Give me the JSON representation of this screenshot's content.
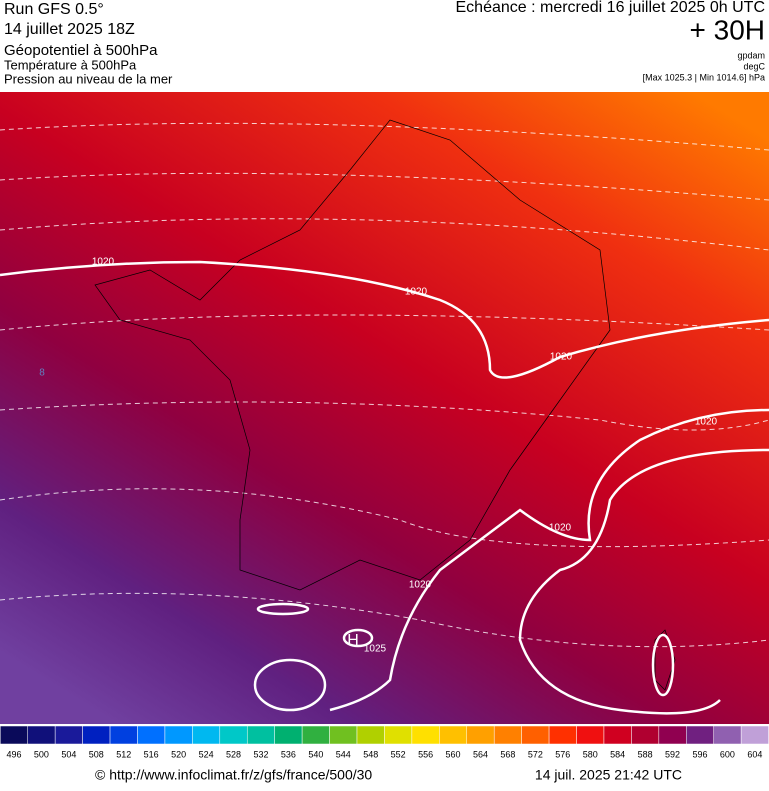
{
  "header": {
    "run": "Run GFS 0.5°",
    "date": "14 juillet 2025 18Z",
    "field1": "Géopotentiel à 500hPa",
    "field2": "Température à 500hPa",
    "field3": "Pression au niveau de la mer",
    "echeance": "Echéance : mercredi 16 juillet 2025 0h UTC",
    "lead": "+ 30H",
    "unit1": "gpdam",
    "unit2": "degC",
    "maxmin": "[Max 1025.3 | Min 1014.6] hPa"
  },
  "map": {
    "contour_labels": [
      "1020",
      "1020",
      "1020",
      "1020",
      "1020",
      "1020",
      "1025",
      "H",
      "8"
    ]
  },
  "colorbar": {
    "labels": [
      496,
      500,
      504,
      508,
      512,
      516,
      520,
      524,
      528,
      532,
      536,
      540,
      544,
      548,
      552,
      556,
      560,
      564,
      568,
      572,
      576,
      580,
      584,
      588,
      592,
      596,
      600,
      604
    ],
    "colors": [
      "#0a0a5a",
      "#10107a",
      "#1a1a9a",
      "#0020c0",
      "#0040e0",
      "#0070ff",
      "#0098ff",
      "#00b8f0",
      "#00c8c8",
      "#00c0a0",
      "#00b070",
      "#30b040",
      "#70c020",
      "#b0d000",
      "#e0e000",
      "#ffe000",
      "#ffc000",
      "#ffa000",
      "#ff8000",
      "#ff6000",
      "#ff3000",
      "#f01010",
      "#d00020",
      "#b00030",
      "#900050",
      "#702080",
      "#9060b0",
      "#c0a0d8"
    ]
  },
  "footer": {
    "url": "© http://www.infoclimat.fr/z/gfs/france/500/30",
    "stamp": "14 juil. 2025 21:42 UTC"
  }
}
